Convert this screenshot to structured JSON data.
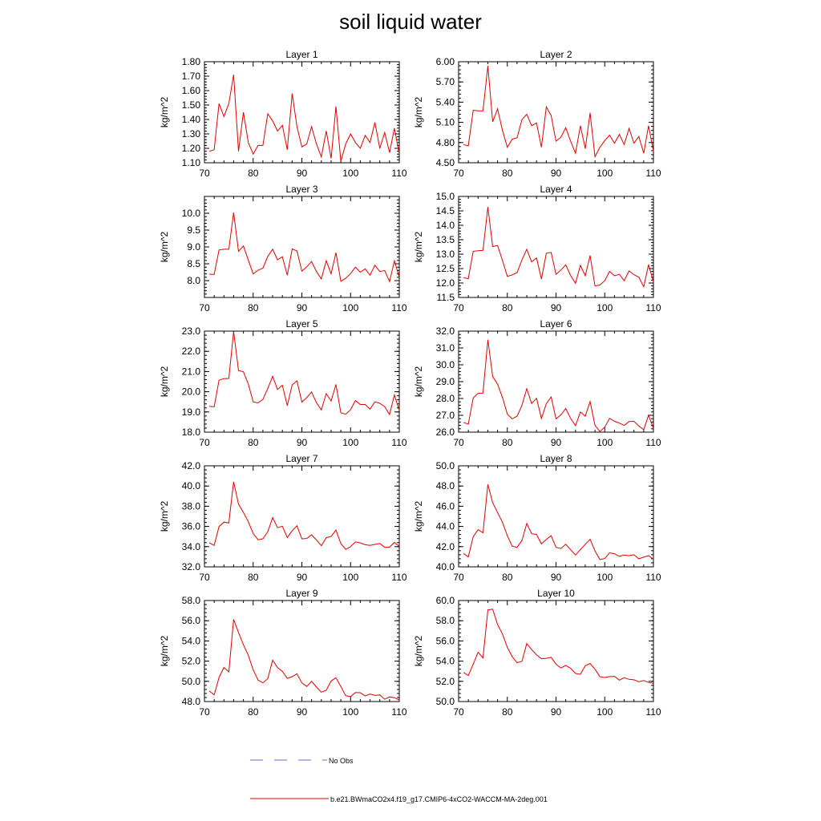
{
  "figure": {
    "title": "soil liquid water"
  },
  "legend": {
    "obs_label": "No Obs",
    "model_label": "b.e21.BWmaCO2x4.f19_g17.CMIP6-4xCO2-WACCM-MA-2deg.001",
    "obs_color": "#6a6ad0",
    "model_color": "#e00000"
  },
  "chart_data": [
    {
      "type": "line",
      "title": "Layer 1",
      "ylabel": "kg/m^2",
      "xlim": [
        70,
        110
      ],
      "xticks": [
        70,
        80,
        90,
        100,
        110
      ],
      "ylim": [
        1.1,
        1.8
      ],
      "yticks": [
        1.1,
        1.2,
        1.3,
        1.4,
        1.5,
        1.6,
        1.7,
        1.8
      ],
      "ytick_labels": [
        "1.10",
        "1.20",
        "1.30",
        "1.40",
        "1.50",
        "1.60",
        "1.70",
        "1.80"
      ],
      "x": [
        71,
        72,
        73,
        74,
        75,
        76,
        77,
        78,
        79,
        80,
        81,
        82,
        83,
        84,
        85,
        86,
        87,
        88,
        89,
        90,
        91,
        92,
        93,
        94,
        95,
        96,
        97,
        98,
        99,
        100,
        101,
        102,
        103,
        104,
        105,
        106,
        107,
        108,
        109,
        110
      ],
      "series": [
        {
          "values": [
            1.18,
            1.19,
            1.51,
            1.42,
            1.51,
            1.71,
            1.18,
            1.45,
            1.24,
            1.16,
            1.22,
            1.22,
            1.44,
            1.39,
            1.32,
            1.36,
            1.19,
            1.58,
            1.35,
            1.21,
            1.23,
            1.35,
            1.23,
            1.14,
            1.32,
            1.13,
            1.49,
            1.11,
            1.23,
            1.3,
            1.24,
            1.2,
            1.29,
            1.24,
            1.38,
            1.2,
            1.31,
            1.17,
            1.34,
            1.16
          ]
        }
      ]
    },
    {
      "type": "line",
      "title": "Layer 2",
      "ylabel": "kg/m^2",
      "xlim": [
        70,
        110
      ],
      "xticks": [
        70,
        80,
        90,
        100,
        110
      ],
      "ylim": [
        4.5,
        6.0
      ],
      "yticks": [
        4.5,
        4.8,
        5.1,
        5.4,
        5.7,
        6.0
      ],
      "ytick_labels": [
        "4.50",
        "4.80",
        "5.10",
        "5.40",
        "5.70",
        "6.00"
      ],
      "x": [
        71,
        72,
        73,
        74,
        75,
        76,
        77,
        78,
        79,
        80,
        81,
        82,
        83,
        84,
        85,
        86,
        87,
        88,
        89,
        90,
        91,
        92,
        93,
        94,
        95,
        96,
        97,
        98,
        99,
        100,
        101,
        102,
        103,
        104,
        105,
        106,
        107,
        108,
        109,
        110
      ],
      "series": [
        {
          "values": [
            4.77,
            4.75,
            5.28,
            5.27,
            5.27,
            5.94,
            5.11,
            5.3,
            4.98,
            4.73,
            4.85,
            4.87,
            5.14,
            5.22,
            5.05,
            5.09,
            4.73,
            5.33,
            5.2,
            4.82,
            4.88,
            5.02,
            4.82,
            4.64,
            5.05,
            4.71,
            5.24,
            4.59,
            4.73,
            4.83,
            4.91,
            4.79,
            4.92,
            4.77,
            5.01,
            4.79,
            4.89,
            4.64,
            5.05,
            4.67
          ]
        }
      ]
    },
    {
      "type": "line",
      "title": "Layer 3",
      "ylabel": "kg/m^2",
      "xlim": [
        70,
        110
      ],
      "xticks": [
        70,
        80,
        90,
        100,
        110
      ],
      "ylim": [
        7.5,
        10.5
      ],
      "yticks": [
        8.0,
        8.5,
        9.0,
        9.5,
        10.0
      ],
      "ytick_labels": [
        "8.0",
        "8.5",
        "9.0",
        "9.5",
        "10.0"
      ],
      "x": [
        71,
        72,
        73,
        74,
        75,
        76,
        77,
        78,
        79,
        80,
        81,
        82,
        83,
        84,
        85,
        86,
        87,
        88,
        89,
        90,
        91,
        92,
        93,
        94,
        95,
        96,
        97,
        98,
        99,
        100,
        101,
        102,
        103,
        104,
        105,
        106,
        107,
        108,
        109,
        110
      ],
      "series": [
        {
          "values": [
            8.19,
            8.18,
            8.91,
            8.93,
            8.93,
            10.02,
            8.87,
            9.03,
            8.61,
            8.2,
            8.31,
            8.37,
            8.72,
            8.93,
            8.62,
            8.71,
            8.16,
            8.94,
            8.88,
            8.28,
            8.41,
            8.57,
            8.27,
            8.05,
            8.59,
            8.2,
            8.83,
            7.98,
            8.07,
            8.21,
            8.4,
            8.25,
            8.35,
            8.16,
            8.46,
            8.27,
            8.3,
            7.97,
            8.59,
            8.1
          ]
        }
      ]
    },
    {
      "type": "line",
      "title": "Layer 4",
      "ylabel": "kg/m^2",
      "xlim": [
        70,
        110
      ],
      "xticks": [
        70,
        80,
        90,
        100,
        110
      ],
      "ylim": [
        11.5,
        15.0
      ],
      "yticks": [
        11.5,
        12.0,
        12.5,
        13.0,
        13.5,
        14.0,
        14.5,
        15.0
      ],
      "ytick_labels": [
        "11.5",
        "12.0",
        "12.5",
        "13.0",
        "13.5",
        "14.0",
        "14.5",
        "15.0"
      ],
      "x": [
        71,
        72,
        73,
        74,
        75,
        76,
        77,
        78,
        79,
        80,
        81,
        82,
        83,
        84,
        85,
        86,
        87,
        88,
        89,
        90,
        91,
        92,
        93,
        94,
        95,
        96,
        97,
        98,
        99,
        100,
        101,
        102,
        103,
        104,
        105,
        106,
        107,
        108,
        109,
        110
      ],
      "series": [
        {
          "values": [
            12.19,
            12.15,
            13.1,
            13.12,
            13.13,
            14.64,
            13.26,
            13.3,
            12.78,
            12.23,
            12.28,
            12.36,
            12.8,
            13.17,
            12.73,
            12.87,
            12.14,
            13.03,
            13.06,
            12.3,
            12.45,
            12.63,
            12.26,
            11.99,
            12.61,
            12.25,
            12.95,
            11.9,
            11.93,
            12.08,
            12.4,
            12.25,
            12.3,
            12.08,
            12.42,
            12.29,
            12.2,
            11.87,
            12.64,
            12.04
          ]
        }
      ]
    },
    {
      "type": "line",
      "title": "Layer 5",
      "ylabel": "kg/m^2",
      "xlim": [
        70,
        110
      ],
      "xticks": [
        70,
        80,
        90,
        100,
        110
      ],
      "ylim": [
        18.0,
        23.0
      ],
      "yticks": [
        18.0,
        19.0,
        20.0,
        21.0,
        22.0,
        23.0
      ],
      "ytick_labels": [
        "18.0",
        "19.0",
        "20.0",
        "21.0",
        "22.0",
        "23.0"
      ],
      "x": [
        71,
        72,
        73,
        74,
        75,
        76,
        77,
        78,
        79,
        80,
        81,
        82,
        83,
        84,
        85,
        86,
        87,
        88,
        89,
        90,
        91,
        92,
        93,
        94,
        95,
        96,
        97,
        98,
        99,
        100,
        101,
        102,
        103,
        104,
        105,
        106,
        107,
        108,
        109,
        110
      ],
      "series": [
        {
          "values": [
            19.28,
            19.25,
            20.57,
            20.65,
            20.66,
            22.98,
            21.05,
            20.99,
            20.38,
            19.5,
            19.45,
            19.62,
            20.16,
            20.76,
            20.11,
            20.32,
            19.31,
            20.34,
            20.54,
            19.49,
            19.71,
            19.99,
            19.46,
            19.1,
            19.91,
            19.54,
            20.36,
            18.96,
            18.89,
            19.11,
            19.56,
            19.37,
            19.37,
            19.14,
            19.5,
            19.43,
            19.26,
            18.87,
            19.84,
            19.08
          ]
        }
      ]
    },
    {
      "type": "line",
      "title": "Layer 6",
      "ylabel": "kg/m^2",
      "xlim": [
        70,
        110
      ],
      "xticks": [
        70,
        80,
        90,
        100,
        110
      ],
      "ylim": [
        26.0,
        32.0
      ],
      "yticks": [
        26.0,
        27.0,
        28.0,
        29.0,
        30.0,
        31.0,
        32.0
      ],
      "ytick_labels": [
        "26.0",
        "27.0",
        "28.0",
        "29.0",
        "30.0",
        "31.0",
        "32.0"
      ],
      "x": [
        71,
        72,
        73,
        74,
        75,
        76,
        77,
        78,
        79,
        80,
        81,
        82,
        83,
        84,
        85,
        86,
        87,
        88,
        89,
        90,
        91,
        92,
        93,
        94,
        95,
        96,
        97,
        98,
        99,
        100,
        101,
        102,
        103,
        104,
        105,
        106,
        107,
        108,
        109,
        110
      ],
      "series": [
        {
          "values": [
            26.58,
            26.47,
            28.03,
            28.31,
            28.32,
            31.49,
            29.3,
            28.85,
            28.06,
            27.07,
            26.79,
            26.95,
            27.59,
            28.58,
            27.7,
            28.02,
            26.81,
            27.69,
            28.09,
            26.79,
            27.03,
            27.4,
            26.82,
            26.38,
            27.2,
            26.95,
            27.82,
            26.41,
            26.04,
            26.3,
            26.82,
            26.65,
            26.54,
            26.4,
            26.63,
            26.65,
            26.36,
            26.15,
            27.01,
            26.22
          ]
        }
      ]
    },
    {
      "type": "line",
      "title": "Layer 7",
      "ylabel": "kg/m^2",
      "xlim": [
        70,
        110
      ],
      "xticks": [
        70,
        80,
        90,
        100,
        110
      ],
      "ylim": [
        32.0,
        42.0
      ],
      "yticks": [
        32.0,
        34.0,
        36.0,
        38.0,
        40.0,
        42.0
      ],
      "ytick_labels": [
        "32.0",
        "34.0",
        "36.0",
        "38.0",
        "40.0",
        "42.0"
      ],
      "x": [
        71,
        72,
        73,
        74,
        75,
        76,
        77,
        78,
        79,
        80,
        81,
        82,
        83,
        84,
        85,
        86,
        87,
        88,
        89,
        90,
        91,
        92,
        93,
        94,
        95,
        96,
        97,
        98,
        99,
        100,
        101,
        102,
        103,
        104,
        105,
        106,
        107,
        108,
        109,
        110
      ],
      "series": [
        {
          "values": [
            34.37,
            34.12,
            35.99,
            36.43,
            36.34,
            40.42,
            38.21,
            37.39,
            36.47,
            35.29,
            34.68,
            34.78,
            35.48,
            36.87,
            35.87,
            36.02,
            34.9,
            35.57,
            36.06,
            34.77,
            34.81,
            35.17,
            34.66,
            34.09,
            34.89,
            35.01,
            35.64,
            34.3,
            33.73,
            33.99,
            34.47,
            34.37,
            34.19,
            34.13,
            34.22,
            34.32,
            33.93,
            33.95,
            34.41,
            34.03
          ]
        }
      ]
    },
    {
      "type": "line",
      "title": "Layer 8",
      "ylabel": "kg/m^2",
      "xlim": [
        70,
        110
      ],
      "xticks": [
        70,
        80,
        90,
        100,
        110
      ],
      "ylim": [
        40.0,
        50.0
      ],
      "yticks": [
        40.0,
        42.0,
        44.0,
        46.0,
        48.0,
        50.0
      ],
      "ytick_labels": [
        "40.0",
        "42.0",
        "44.0",
        "46.0",
        "48.0",
        "50.0"
      ],
      "x": [
        71,
        72,
        73,
        74,
        75,
        76,
        77,
        78,
        79,
        80,
        81,
        82,
        83,
        84,
        85,
        86,
        87,
        88,
        89,
        90,
        91,
        92,
        93,
        94,
        95,
        96,
        97,
        98,
        99,
        100,
        101,
        102,
        103,
        104,
        105,
        106,
        107,
        108,
        109,
        110
      ],
      "series": [
        {
          "values": [
            41.32,
            40.99,
            42.97,
            43.68,
            43.37,
            48.16,
            46.35,
            45.37,
            44.41,
            43.07,
            42.05,
            41.93,
            42.61,
            44.29,
            43.28,
            43.21,
            42.27,
            42.72,
            43.08,
            41.93,
            41.82,
            42.24,
            41.69,
            41.17,
            41.7,
            42.24,
            42.72,
            41.58,
            40.73,
            40.82,
            41.39,
            41.3,
            41.03,
            41.17,
            41.1,
            41.2,
            40.79,
            40.96,
            41.1,
            40.75
          ]
        }
      ]
    },
    {
      "type": "line",
      "title": "Layer 9",
      "ylabel": "kg/m^2",
      "xlim": [
        70,
        110
      ],
      "xticks": [
        70,
        80,
        90,
        100,
        110
      ],
      "ylim": [
        48.0,
        58.0
      ],
      "yticks": [
        48.0,
        50.0,
        52.0,
        54.0,
        56.0,
        58.0
      ],
      "ytick_labels": [
        "48.0",
        "50.0",
        "52.0",
        "54.0",
        "56.0",
        "58.0"
      ],
      "x": [
        71,
        72,
        73,
        74,
        75,
        76,
        77,
        78,
        79,
        80,
        81,
        82,
        83,
        84,
        85,
        86,
        87,
        88,
        89,
        90,
        91,
        92,
        93,
        94,
        95,
        96,
        97,
        98,
        99,
        100,
        101,
        102,
        103,
        104,
        105,
        106,
        107,
        108,
        109,
        110
      ],
      "series": [
        {
          "values": [
            49.04,
            48.66,
            50.37,
            51.37,
            50.94,
            56.13,
            54.83,
            53.62,
            52.58,
            51.14,
            50.13,
            49.85,
            50.27,
            52.09,
            51.36,
            50.99,
            50.29,
            50.46,
            50.75,
            49.84,
            49.49,
            50.0,
            49.43,
            48.93,
            49.11,
            50.03,
            50.36,
            49.49,
            48.57,
            48.49,
            48.89,
            48.87,
            48.55,
            48.74,
            48.6,
            48.66,
            48.22,
            48.46,
            48.38,
            48.15
          ]
        }
      ]
    },
    {
      "type": "line",
      "title": "Layer 10",
      "ylabel": "kg/m^2",
      "xlim": [
        70,
        110
      ],
      "xticks": [
        70,
        80,
        90,
        100,
        110
      ],
      "ylim": [
        50.0,
        60.0
      ],
      "yticks": [
        50.0,
        52.0,
        54.0,
        56.0,
        58.0,
        60.0
      ],
      "ytick_labels": [
        "50.0",
        "52.0",
        "54.0",
        "56.0",
        "58.0",
        "60.0"
      ],
      "x": [
        71,
        72,
        73,
        74,
        75,
        76,
        77,
        78,
        79,
        80,
        81,
        82,
        83,
        84,
        85,
        86,
        87,
        88,
        89,
        90,
        91,
        92,
        93,
        94,
        95,
        96,
        97,
        98,
        99,
        100,
        101,
        102,
        103,
        104,
        105,
        106,
        107,
        108,
        109,
        110
      ],
      "series": [
        {
          "values": [
            52.88,
            52.58,
            53.7,
            54.89,
            54.32,
            59.07,
            59.14,
            57.63,
            56.68,
            55.36,
            54.45,
            53.84,
            53.98,
            55.74,
            55.14,
            54.62,
            54.24,
            54.28,
            54.38,
            53.7,
            53.32,
            53.57,
            53.29,
            52.78,
            52.7,
            53.54,
            53.77,
            53.2,
            52.46,
            52.38,
            52.47,
            52.49,
            52.12,
            52.36,
            52.2,
            52.15,
            51.95,
            52.08,
            51.89,
            51.8
          ]
        }
      ]
    }
  ]
}
